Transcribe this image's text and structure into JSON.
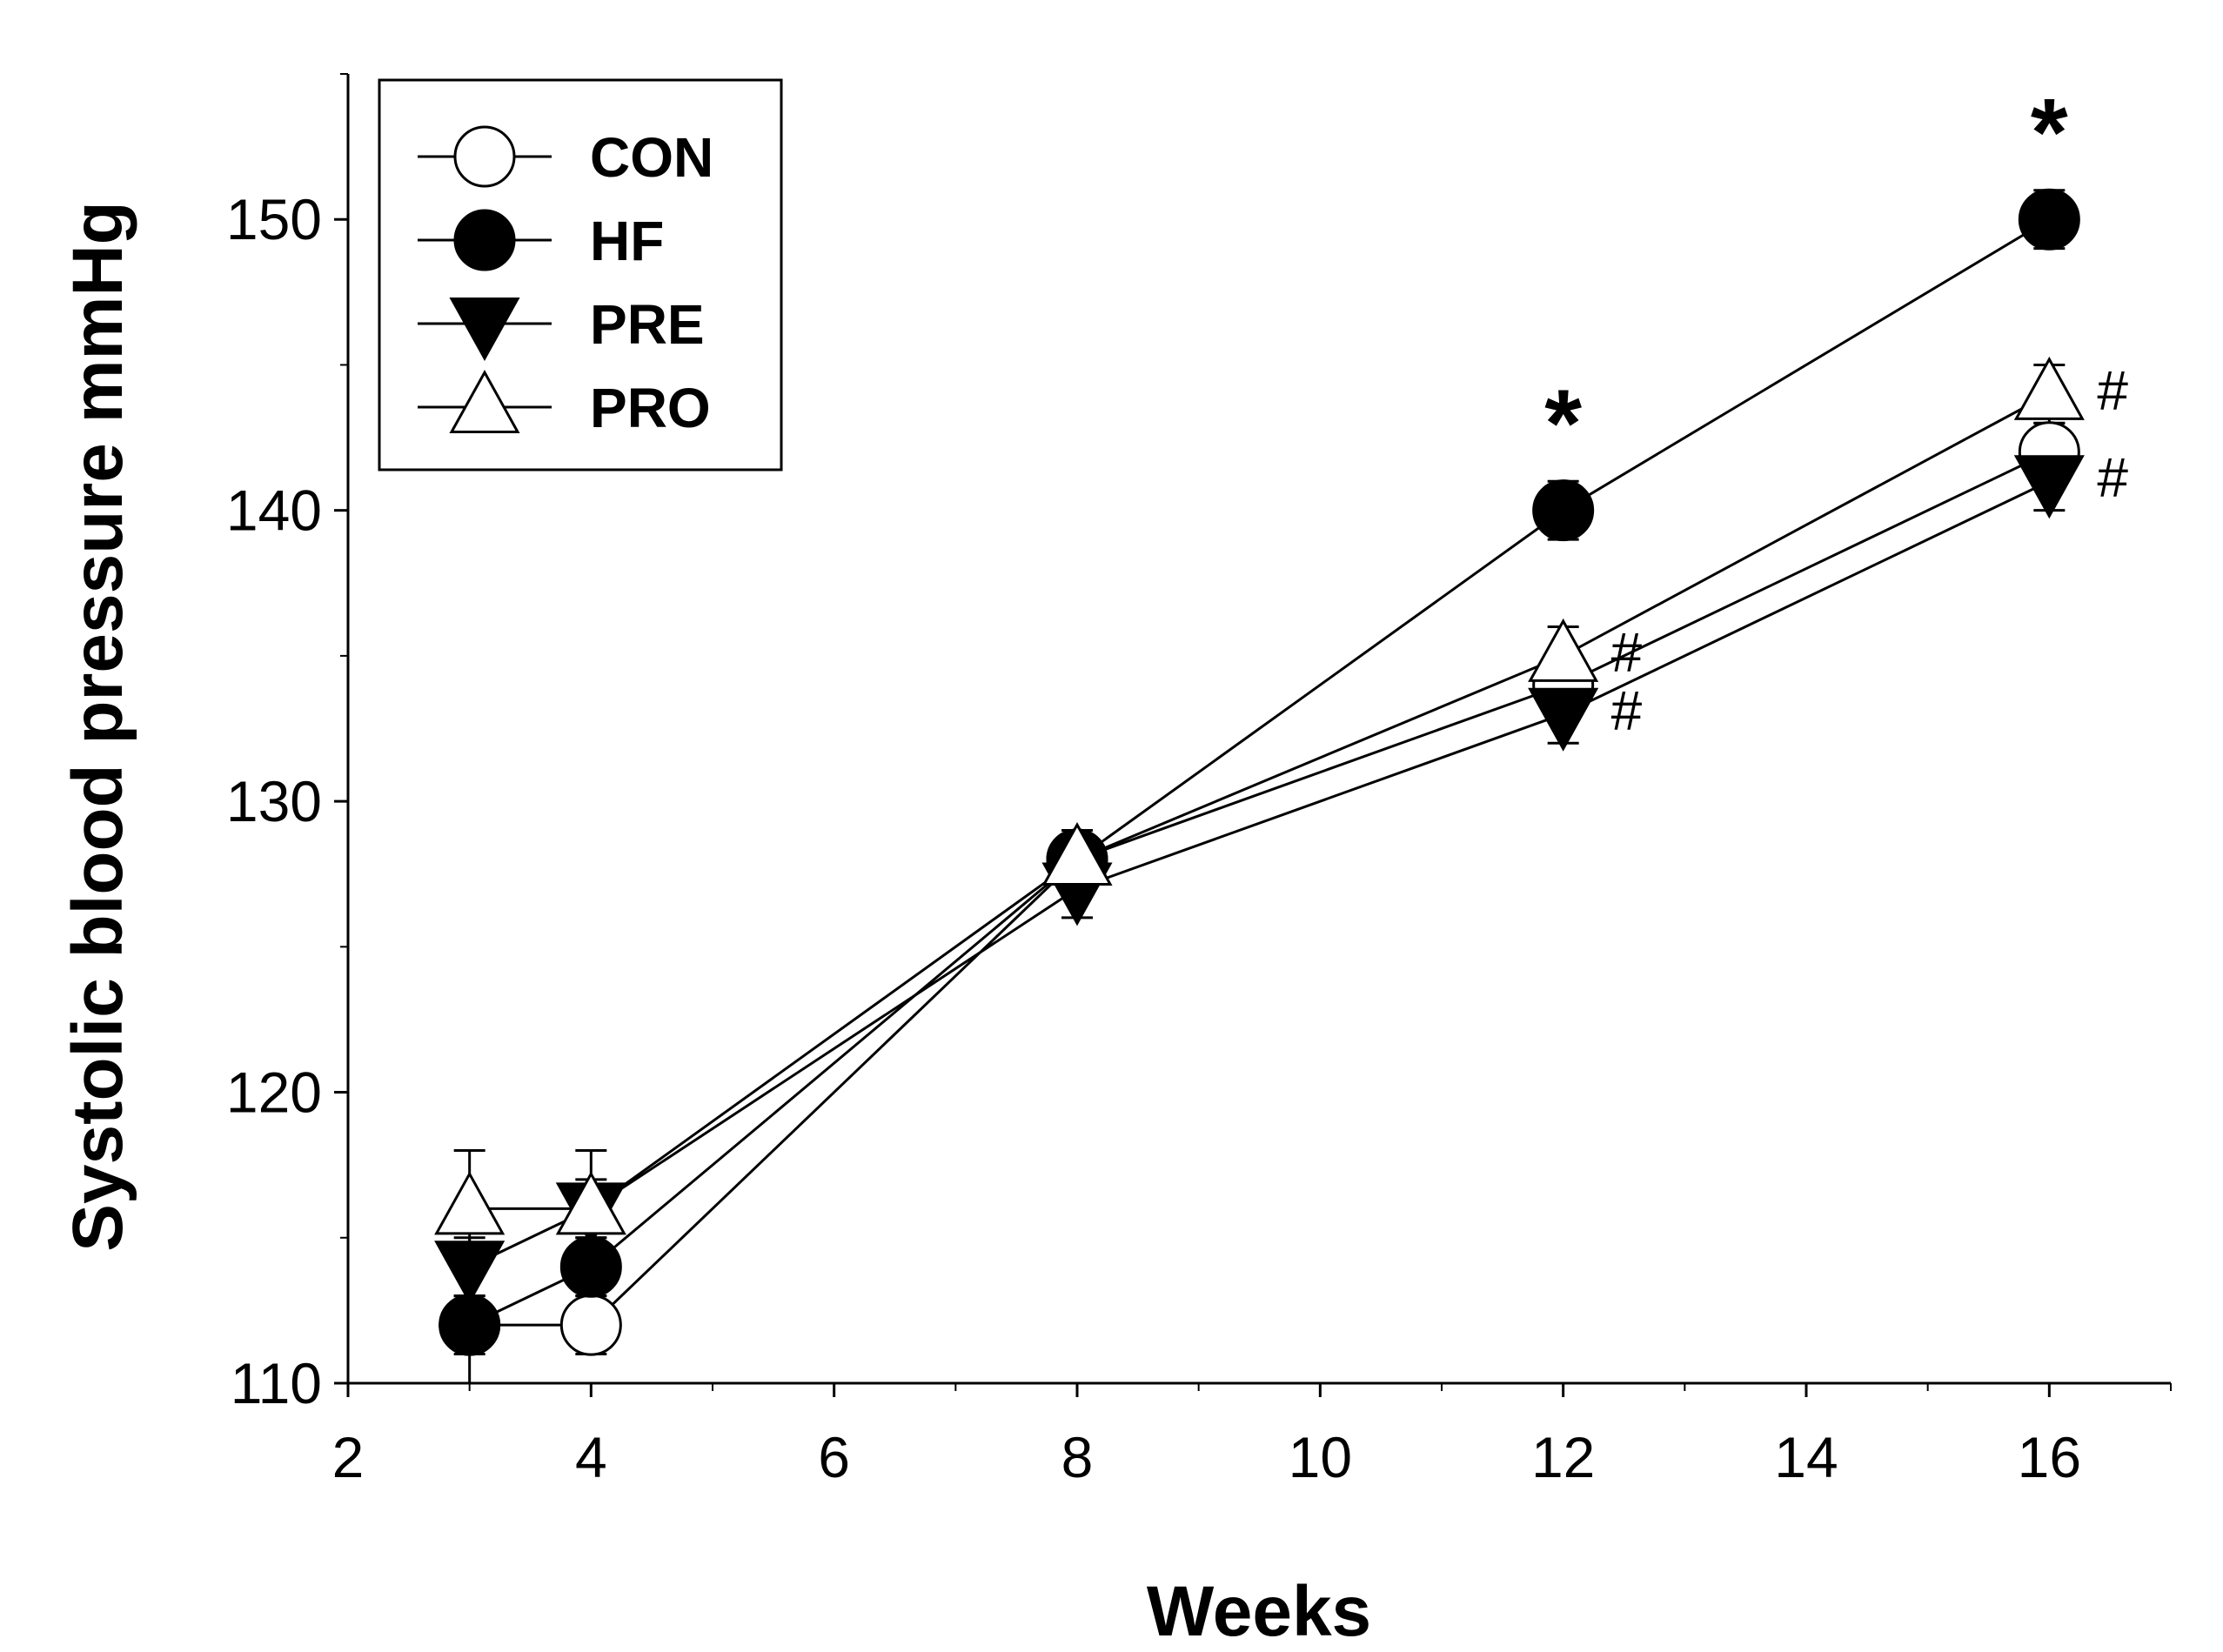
{
  "chart_data": {
    "type": "line",
    "title": "",
    "xlabel": "Weeks",
    "ylabel": "Systolic blood pressure mmHg",
    "xlim": [
      2,
      17
    ],
    "ylim": [
      110,
      155
    ],
    "xticks": [
      2,
      4,
      6,
      8,
      10,
      12,
      14,
      16
    ],
    "yticks": [
      110,
      120,
      130,
      140,
      150
    ],
    "grid": false,
    "legend_position": "top-left",
    "x": [
      3,
      4,
      8,
      12,
      16
    ],
    "series": [
      {
        "name": "CON",
        "marker": "circle-open",
        "values": [
          112,
          112,
          128,
          134,
          142
        ],
        "errors": [
          1,
          1,
          1,
          1,
          1
        ]
      },
      {
        "name": "HF",
        "marker": "circle-filled",
        "values": [
          112,
          114,
          128,
          140,
          150
        ],
        "errors": [
          2,
          1,
          1,
          1,
          1
        ]
      },
      {
        "name": "PRE",
        "marker": "triangle-down-filled",
        "values": [
          114,
          116,
          127,
          133,
          141
        ],
        "errors": [
          1,
          1,
          1,
          1,
          1
        ]
      },
      {
        "name": "PRO",
        "marker": "triangle-up-open",
        "values": [
          116,
          116,
          128,
          135,
          144
        ],
        "errors": [
          2,
          2,
          1,
          1,
          1
        ]
      }
    ],
    "annotations": [
      {
        "text": "*",
        "x": 12,
        "y": 140,
        "series": "HF"
      },
      {
        "text": "*",
        "x": 16,
        "y": 150,
        "series": "HF"
      },
      {
        "text": "#",
        "x": 12,
        "y": 135,
        "series": "PRO"
      },
      {
        "text": "#",
        "x": 12,
        "y": 133,
        "series": "PRE"
      },
      {
        "text": "#",
        "x": 16,
        "y": 144,
        "series": "PRO"
      },
      {
        "text": "#",
        "x": 16,
        "y": 141,
        "series": "PRE"
      }
    ]
  }
}
